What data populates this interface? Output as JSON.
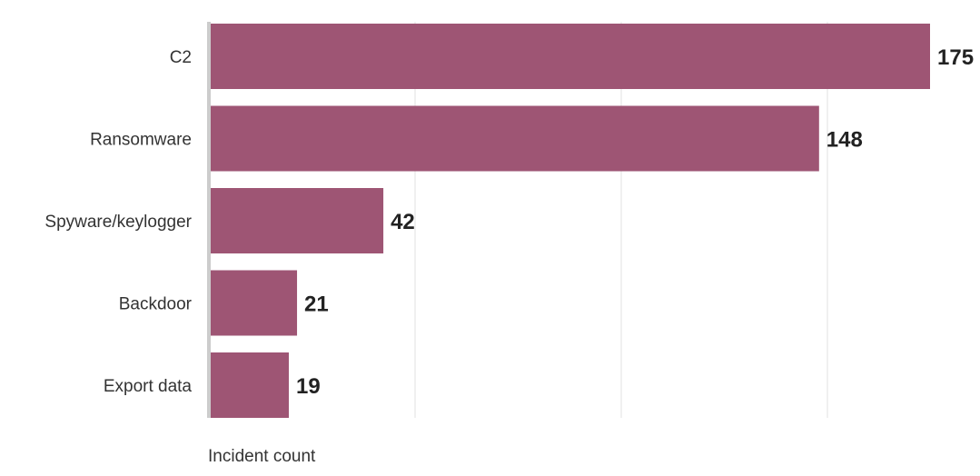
{
  "chart_data": {
    "type": "bar",
    "orientation": "horizontal",
    "categories": [
      "C2",
      "Ransomware",
      "Spyware/keylogger",
      "Backdoor",
      "Export data"
    ],
    "values": [
      175,
      148,
      42,
      21,
      19
    ],
    "title": "",
    "xlabel": "Incident count",
    "ylabel": "",
    "xlim": [
      0,
      175
    ],
    "grid": true,
    "legend": "none",
    "bar_color": "#9e5574",
    "value_label_color": "#222222"
  }
}
